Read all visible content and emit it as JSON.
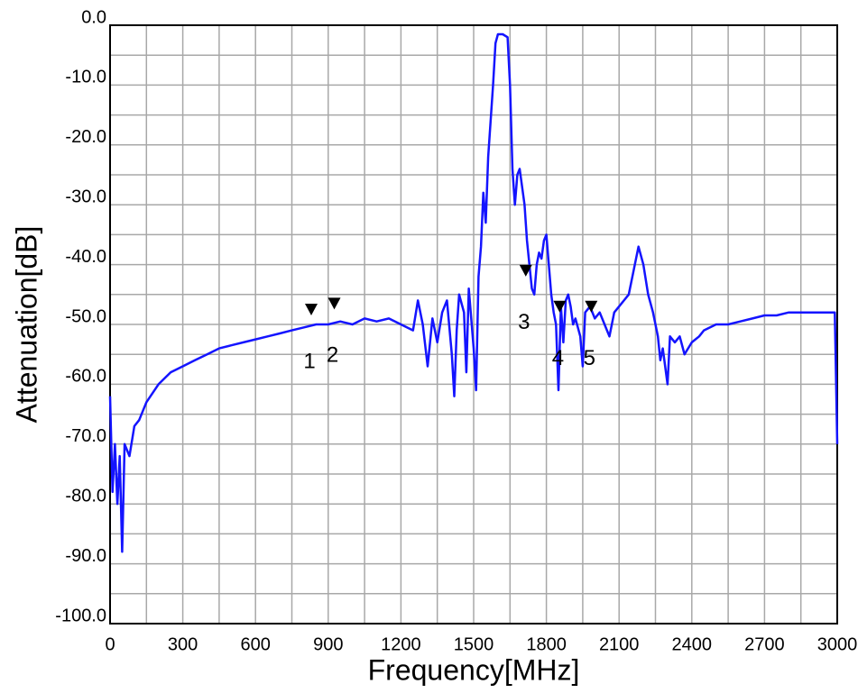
{
  "chart_data": {
    "type": "line",
    "xlabel": "Frequency[MHz]",
    "ylabel": "Attenuation[dB]",
    "xlim": [
      0,
      3000
    ],
    "ylim": [
      -100,
      0
    ],
    "xticks": [
      0,
      300,
      600,
      900,
      1200,
      1500,
      1800,
      2100,
      2400,
      2700,
      3000
    ],
    "yticks": [
      {
        "value": 0,
        "label": "0.0"
      },
      {
        "value": -10,
        "label": "-10.0"
      },
      {
        "value": -20,
        "label": "-20.0"
      },
      {
        "value": -30,
        "label": "-30.0"
      },
      {
        "value": -40,
        "label": "-40.0"
      },
      {
        "value": -50,
        "label": "-50.0"
      },
      {
        "value": -60,
        "label": "-60.0"
      },
      {
        "value": -70,
        "label": "-70.0"
      },
      {
        "value": -80,
        "label": "-80.0"
      },
      {
        "value": -90,
        "label": "-90.0"
      },
      {
        "value": -100,
        "label": "-100.0"
      }
    ],
    "minor_xticks": [
      150,
      450,
      750,
      1050,
      1350,
      1650,
      1950,
      2250,
      2550,
      2850
    ],
    "minor_yticks": [
      -5,
      -15,
      -25,
      -35,
      -45,
      -55,
      -65,
      -75,
      -85,
      -95
    ],
    "grid": true,
    "series": [
      {
        "color": "#1414ff",
        "x": [
          0,
          10,
          20,
          30,
          40,
          50,
          60,
          80,
          100,
          120,
          150,
          200,
          250,
          300,
          350,
          400,
          450,
          500,
          550,
          600,
          650,
          700,
          750,
          800,
          850,
          900,
          950,
          1000,
          1050,
          1100,
          1150,
          1200,
          1250,
          1270,
          1290,
          1310,
          1330,
          1350,
          1370,
          1390,
          1410,
          1420,
          1430,
          1440,
          1460,
          1470,
          1480,
          1490,
          1500,
          1510,
          1520,
          1530,
          1540,
          1550,
          1560,
          1580,
          1590,
          1600,
          1620,
          1640,
          1650,
          1660,
          1670,
          1680,
          1690,
          1700,
          1710,
          1720,
          1730,
          1740,
          1750,
          1760,
          1770,
          1780,
          1790,
          1800,
          1810,
          1820,
          1830,
          1840,
          1850,
          1860,
          1870,
          1880,
          1890,
          1900,
          1910,
          1920,
          1940,
          1950,
          1960,
          1980,
          2000,
          2020,
          2040,
          2060,
          2080,
          2100,
          2120,
          2140,
          2160,
          2180,
          2200,
          2220,
          2240,
          2260,
          2270,
          2280,
          2300,
          2310,
          2330,
          2350,
          2370,
          2400,
          2430,
          2450,
          2500,
          2550,
          2600,
          2650,
          2700,
          2750,
          2800,
          2850,
          2900,
          2950,
          2990,
          3000
        ],
        "values": [
          -62,
          -78,
          -70,
          -80,
          -72,
          -88,
          -70,
          -72,
          -67,
          -66,
          -63,
          -60,
          -58,
          -57,
          -56,
          -55,
          -54,
          -53.5,
          -53,
          -52.5,
          -52,
          -51.5,
          -51,
          -50.5,
          -50,
          -50,
          -49.5,
          -50,
          -49,
          -49.5,
          -49,
          -50,
          -51,
          -46,
          -50,
          -57,
          -49,
          -53,
          -48,
          -46,
          -55,
          -62,
          -51,
          -45,
          -48,
          -58,
          -44,
          -49,
          -54,
          -61,
          -42,
          -37,
          -28,
          -33,
          -22,
          -10,
          -3,
          -1.5,
          -1.5,
          -2,
          -10,
          -24,
          -30,
          -25,
          -24,
          -27,
          -30,
          -36,
          -40,
          -44,
          -45,
          -40,
          -38,
          -39,
          -36,
          -35,
          -40,
          -45,
          -48,
          -50,
          -61,
          -47,
          -53,
          -46,
          -45,
          -47,
          -50,
          -49,
          -52,
          -57,
          -48,
          -47,
          -49,
          -48,
          -50,
          -52,
          -48,
          -47,
          -46,
          -45,
          -41,
          -37,
          -40,
          -45,
          -48,
          -52,
          -56,
          -54,
          -60,
          -52,
          -53,
          -52,
          -55,
          -53,
          -52,
          -51,
          -50,
          -50,
          -49.5,
          -49,
          -48.5,
          -48.5,
          -48,
          -48,
          -48,
          -48,
          -48,
          -70
        ]
      }
    ],
    "markers": [
      {
        "label": "1",
        "x": 830,
        "y": -48.5
      },
      {
        "label": "2",
        "x": 925,
        "y": -47.5
      },
      {
        "label": "3",
        "x": 1715,
        "y": -42
      },
      {
        "label": "4",
        "x": 1855,
        "y": -48
      },
      {
        "label": "5",
        "x": 1985,
        "y": -48
      }
    ]
  }
}
